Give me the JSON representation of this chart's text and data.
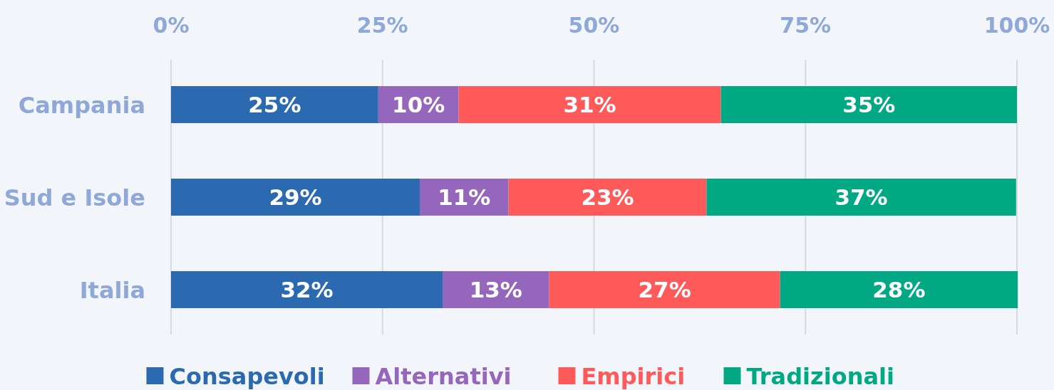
{
  "chart_data": {
    "type": "bar",
    "orientation": "horizontal",
    "stacked": true,
    "categories": [
      "Campania",
      "Sud e Isole",
      "Italia"
    ],
    "series": [
      {
        "name": "Consapevoli",
        "color": "#2b6ab0",
        "values": [
          24.5,
          29.4,
          32.1
        ],
        "value_labels": [
          "25%",
          "29%",
          "32%"
        ]
      },
      {
        "name": "Alternativi",
        "color": "#9467bd",
        "values": [
          9.5,
          10.5,
          12.6
        ],
        "value_labels": [
          "10%",
          "11%",
          "13%"
        ]
      },
      {
        "name": "Empirici",
        "color": "#ff5a5a",
        "values": [
          31,
          23.4,
          27.3
        ],
        "value_labels": [
          "31%",
          "23%",
          "27%"
        ]
      },
      {
        "name": "Tradizionali",
        "color": "#00a884",
        "values": [
          35,
          36.6,
          28.1
        ],
        "value_labels": [
          "35%",
          "37%",
          "28%"
        ]
      }
    ],
    "xlim": [
      0,
      100
    ],
    "xticks": [
      {
        "value": 0,
        "label": "0%"
      },
      {
        "value": 25,
        "label": "25%"
      },
      {
        "value": 50,
        "label": "50%"
      },
      {
        "value": 75,
        "label": "75%"
      },
      {
        "value": 100,
        "label": "100%"
      }
    ],
    "grid": "x",
    "legend": "bottom"
  }
}
